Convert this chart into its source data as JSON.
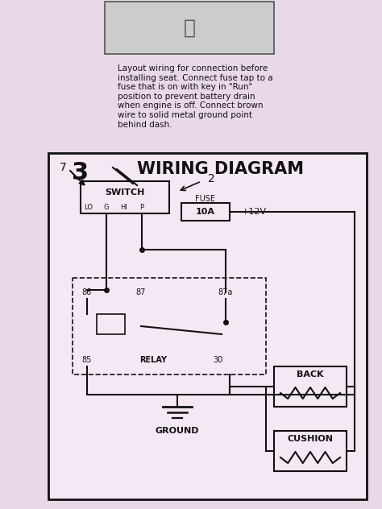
{
  "bg_color": "#e8d8e8",
  "diagram_bg": "#f0e0f0",
  "border_color": "#222222",
  "line_color": "#111111",
  "title": "WIRING DIAGRAM",
  "step_number": "3",
  "description": "Layout wiring for connection before\ninstalling seat. Connect fuse tap to a\nfuse that is on with key in \"Run\"\nposition to prevent battery drain\nwhen engine is off. Connect brown\nwire to solid metal ground point\nbehind dash.",
  "switch_label": "SWITCH",
  "switch_pins": [
    "LO",
    "G",
    "HI",
    "P"
  ],
  "fuse_label": "FUSE",
  "fuse_value": "10A",
  "voltage_label": "+12V",
  "relay_label": "RELAY",
  "relay_pins": [
    "86",
    "87",
    "87a",
    "85",
    "30"
  ],
  "back_label": "BACK",
  "cushion_label": "CUSHION",
  "ground_label": "GROUND"
}
